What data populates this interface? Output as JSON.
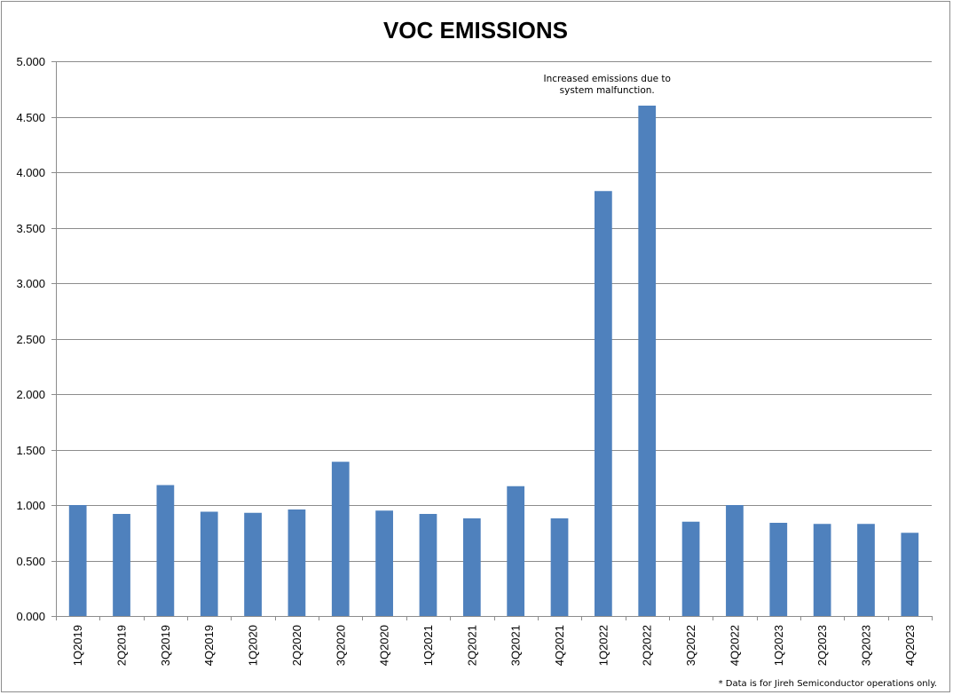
{
  "chart_data": {
    "type": "bar",
    "title": "VOC EMISSIONS",
    "xlabel": "",
    "ylabel": "",
    "ylim": [
      0,
      5
    ],
    "yticks": [
      "0.000",
      "0.500",
      "1.000",
      "1.500",
      "2.000",
      "2.500",
      "3.000",
      "3.500",
      "4.000",
      "4.500",
      "5.000"
    ],
    "grid": true,
    "legend": "none",
    "bar_color": "#4f81bd",
    "categories": [
      "1Q2019",
      "2Q2019",
      "3Q2019",
      "4Q2019",
      "1Q2020",
      "2Q2020",
      "3Q2020",
      "4Q2020",
      "1Q2021",
      "2Q2021",
      "3Q2021",
      "4Q2021",
      "1Q2022",
      "2Q2022",
      "3Q2022",
      "4Q2022",
      "1Q2023",
      "2Q2023",
      "3Q2023",
      "4Q2023"
    ],
    "values": [
      1.0,
      0.92,
      1.18,
      0.94,
      0.93,
      0.96,
      1.39,
      0.95,
      0.92,
      0.88,
      1.17,
      0.88,
      3.83,
      4.6,
      0.85,
      1.0,
      0.84,
      0.83,
      0.83,
      0.75
    ],
    "annotations": [
      {
        "category": "2Q2022",
        "lines": [
          "Increased emissions due to",
          "system malfunction."
        ]
      }
    ],
    "footnote": "* Data is for Jireh Semiconductor operations only."
  }
}
